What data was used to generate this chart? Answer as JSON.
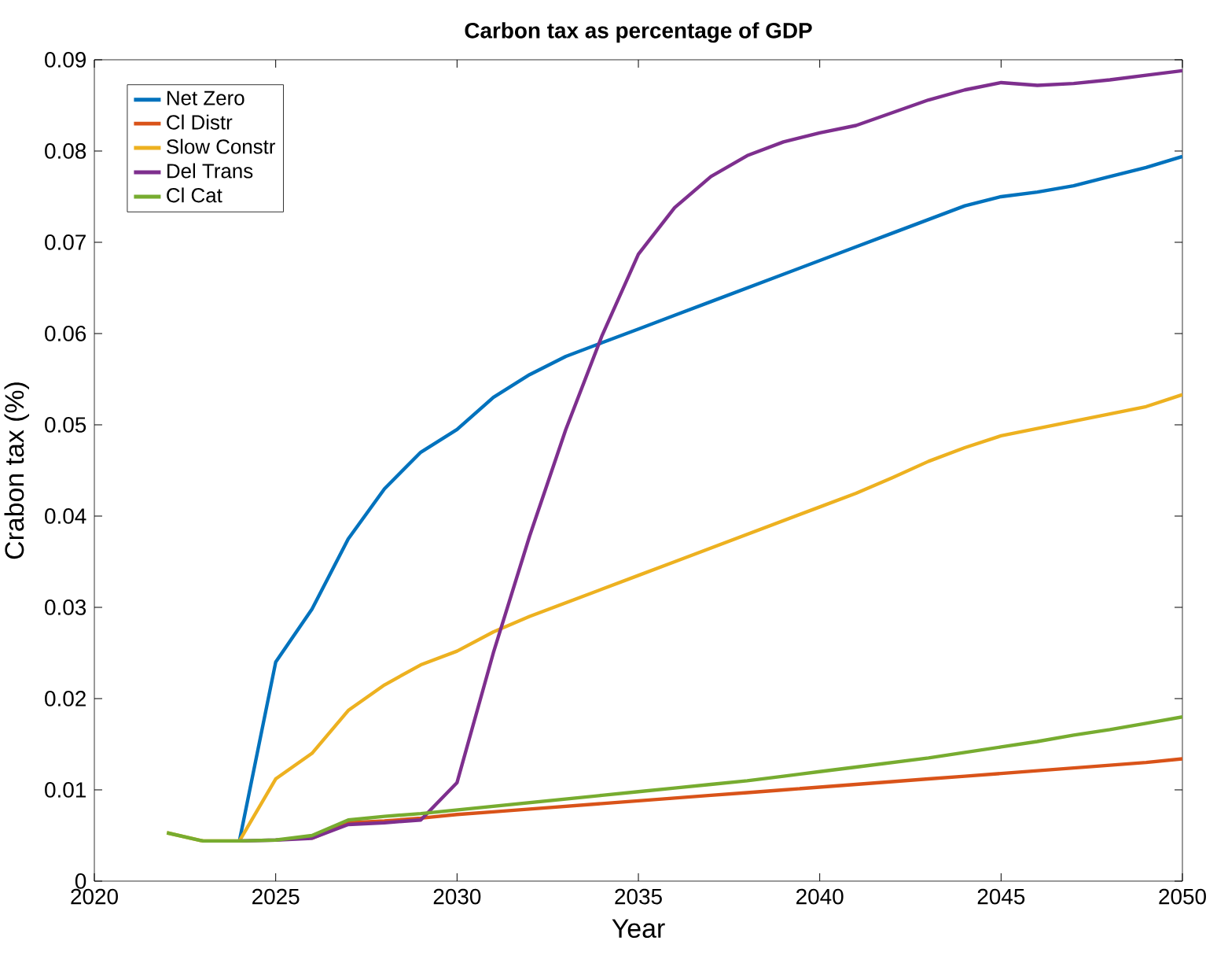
{
  "chart_data": {
    "type": "line",
    "title": "Carbon tax as percentage of GDP",
    "xlabel": "Year",
    "ylabel": "Crabon tax (%)",
    "x": [
      2022,
      2023,
      2024,
      2025,
      2026,
      2027,
      2028,
      2029,
      2030,
      2031,
      2032,
      2033,
      2034,
      2035,
      2036,
      2037,
      2038,
      2039,
      2040,
      2041,
      2042,
      2043,
      2044,
      2045,
      2046,
      2047,
      2048,
      2049,
      2050
    ],
    "series": [
      {
        "name": "Net Zero",
        "color": "#0072bd",
        "values": [
          null,
          null,
          0.0044,
          0.024,
          0.0298,
          0.0375,
          0.043,
          0.047,
          0.0495,
          0.053,
          0.0555,
          0.0575,
          0.059,
          0.0605,
          0.062,
          0.0635,
          0.065,
          0.0665,
          0.068,
          0.0695,
          0.071,
          0.0725,
          0.074,
          0.075,
          0.0755,
          0.0762,
          0.0772,
          0.0782,
          0.0794
        ]
      },
      {
        "name": "Cl Distr",
        "color": "#d95319",
        "values": [
          null,
          null,
          null,
          null,
          0.0047,
          0.0064,
          0.0066,
          0.0069,
          0.0073,
          0.0076,
          0.0079,
          0.0082,
          0.0085,
          0.0088,
          0.0091,
          0.0094,
          0.0097,
          0.01,
          0.0103,
          0.0106,
          0.0109,
          0.0112,
          0.0115,
          0.0118,
          0.0121,
          0.0124,
          0.0127,
          0.013,
          0.0134
        ]
      },
      {
        "name": "Slow Constr",
        "color": "#edb120",
        "values": [
          0.0053,
          0.0044,
          0.0044,
          0.0112,
          0.014,
          0.0187,
          0.0215,
          0.0237,
          0.0252,
          0.0273,
          0.029,
          0.0305,
          0.032,
          0.0335,
          0.035,
          0.0365,
          0.038,
          0.0395,
          0.041,
          0.0425,
          0.0442,
          0.046,
          0.0475,
          0.0488,
          0.0496,
          0.0504,
          0.0512,
          0.052,
          0.0533
        ]
      },
      {
        "name": "Del Trans",
        "color": "#7e2f8e",
        "values": [
          null,
          null,
          0.0044,
          0.0045,
          0.0047,
          0.0062,
          0.0064,
          0.0067,
          0.0108,
          0.025,
          0.0378,
          0.0495,
          0.0598,
          0.0687,
          0.0738,
          0.0772,
          0.0795,
          0.081,
          0.082,
          0.0828,
          0.0842,
          0.0856,
          0.0867,
          0.0875,
          0.0872,
          0.0874,
          0.0878,
          0.0883,
          0.0888
        ]
      },
      {
        "name": "Cl Cat",
        "color": "#77ac30",
        "values": [
          0.0053,
          0.0044,
          0.0044,
          0.0045,
          0.005,
          0.0067,
          0.0071,
          0.0074,
          0.0078,
          0.0082,
          0.0086,
          0.009,
          0.0094,
          0.0098,
          0.0102,
          0.0106,
          0.011,
          0.0115,
          0.012,
          0.0125,
          0.013,
          0.0135,
          0.0141,
          0.0147,
          0.0153,
          0.016,
          0.0166,
          0.0173,
          0.018
        ]
      }
    ],
    "xlim": [
      2020,
      2050
    ],
    "ylim": [
      0,
      0.09
    ],
    "xticks": [
      2020,
      2025,
      2030,
      2035,
      2040,
      2045,
      2050
    ],
    "yticks": [
      0,
      0.01,
      0.02,
      0.03,
      0.04,
      0.05,
      0.06,
      0.07,
      0.08,
      0.09
    ],
    "legend": "top left",
    "line_style": "solid"
  }
}
